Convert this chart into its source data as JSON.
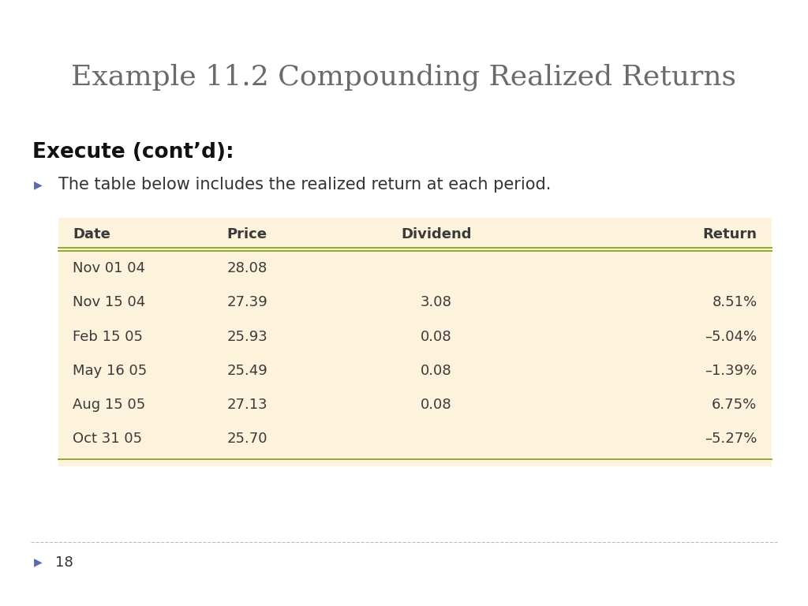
{
  "title": "Example 11.2 Compounding Realized Returns",
  "title_color": "#6b6b6b",
  "title_fontsize": 26,
  "subtitle": "Execute (cont’d):",
  "subtitle_fontsize": 19,
  "bullet_text": "The table below includes the realized return at each period.",
  "bullet_fontsize": 15,
  "bullet_color": "#333333",
  "bullet_marker_color": "#5a6bb5",
  "page_number": "18",
  "page_number_color": "#5a6bb5",
  "background_color": "#ffffff",
  "table_bg_color": "#fdf3dc",
  "table_line_color": "#8fac30",
  "table_text_color": "#3a3a3a",
  "table_header_fontsize": 13,
  "table_data_fontsize": 13,
  "col_headers": [
    "Date",
    "Price",
    "Dividend",
    "Return"
  ],
  "col_ha": [
    "left",
    "center",
    "center",
    "right"
  ],
  "rows": [
    [
      "Nov 01 04",
      "28.08",
      "",
      ""
    ],
    [
      "Nov 15 04",
      "27.39",
      "3.08",
      "8.51%"
    ],
    [
      "Feb 15 05",
      "25.93",
      "0.08",
      "–5.04%"
    ],
    [
      "May 16 05",
      "25.49",
      "0.08",
      "–1.39%"
    ],
    [
      "Aug 15 05",
      "27.13",
      "0.08",
      "6.75%"
    ],
    [
      "Oct 31 05",
      "25.70",
      "",
      "–5.27%"
    ]
  ]
}
